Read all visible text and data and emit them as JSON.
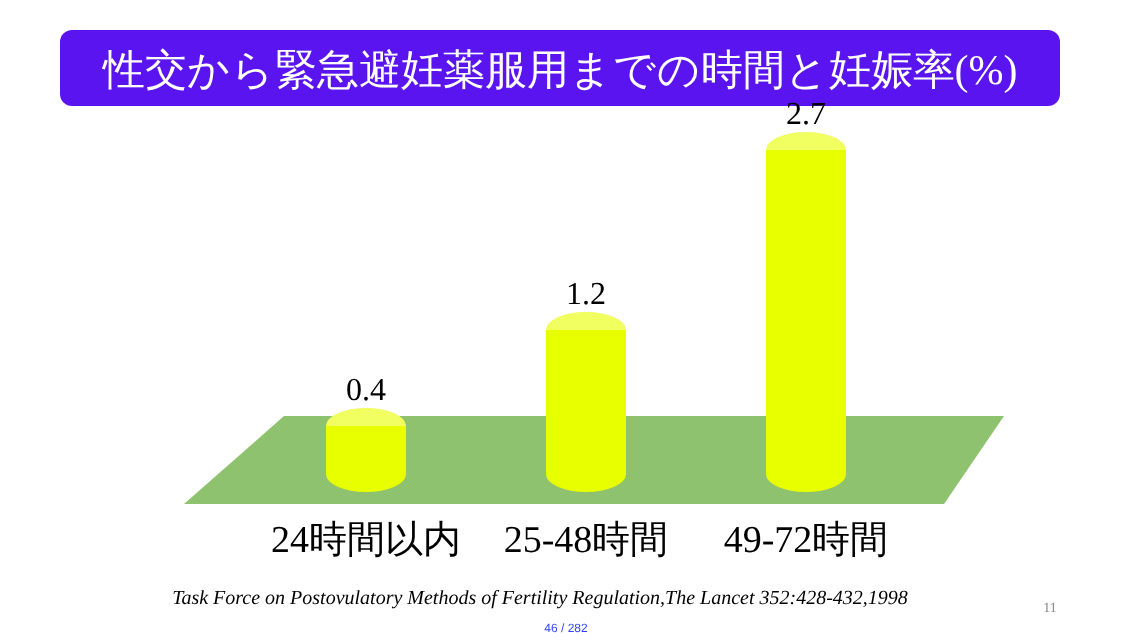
{
  "chart_data": {
    "type": "bar",
    "title": "性交から緊急避妊薬服用までの時間と妊娠率(%)",
    "categories": [
      "24時間以内",
      "25-48時間",
      "49-72時間"
    ],
    "values": [
      0.4,
      1.2,
      2.7
    ],
    "color": "#e8ff00",
    "data_labels": true,
    "annotations": [
      "Task  Force  on Postovulatory Methods of Fertility Regulation,The Lancet 352:428-432,1998",
      "46 / 282",
      "11"
    ]
  }
}
